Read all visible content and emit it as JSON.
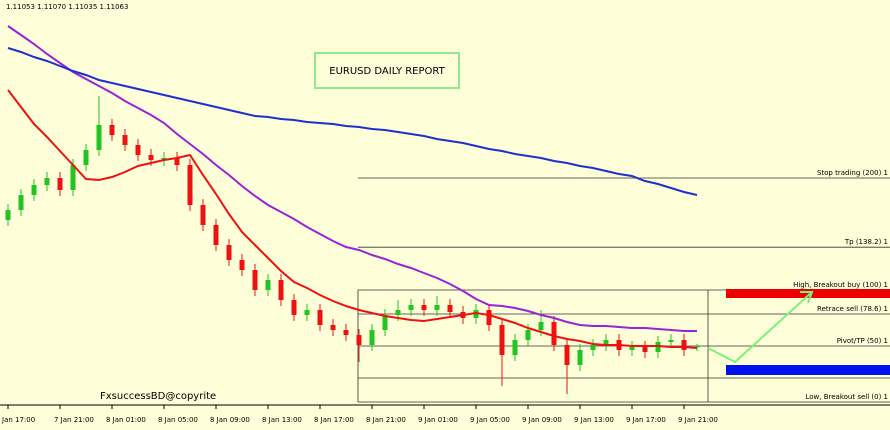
{
  "chart_data": {
    "type": "candlestick",
    "header": "1.11053 1.11070 1.11035 1.11063",
    "title": "EURUSD DAILY REPORT",
    "watermark": "FxsuccessBD@copyrite",
    "ylim": [
      1.10765,
      1.1279
    ],
    "categories": [
      "Jan 17:00",
      null,
      null,
      null,
      "7 Jan 21:00",
      null,
      null,
      null,
      "8 Jan 01:00",
      null,
      null,
      null,
      "8 Jan 05:00",
      null,
      null,
      null,
      "8 Jan 09:00",
      null,
      null,
      null,
      "8 Jan 13:00",
      null,
      null,
      null,
      "8 Jan 17:00",
      null,
      null,
      null,
      "8 Jan 21:00",
      null,
      null,
      null,
      "9 Jan 01:00",
      null,
      null,
      null,
      "9 Jan 05:00",
      null,
      null,
      null,
      "9 Jan 09:00",
      null,
      null,
      null,
      "9 Jan 13:00",
      null,
      null,
      null,
      "9 Jan 17:00",
      null,
      null,
      null,
      "9 Jan 21:00",
      null
    ],
    "open": [
      1.1169,
      1.1174,
      1.11815,
      1.11865,
      1.119,
      1.1184,
      1.11965,
      1.1204,
      1.12165,
      1.12115,
      1.12065,
      1.12015,
      1.1199,
      1.12,
      1.11965,
      1.11765,
      1.11665,
      1.11565,
      1.1149,
      1.1144,
      1.1134,
      1.1139,
      1.1129,
      1.11215,
      1.1124,
      1.11165,
      1.1114,
      1.11115,
      1.11065,
      1.1114,
      1.11215,
      1.1124,
      1.11265,
      1.1124,
      1.11265,
      1.1123,
      1.112,
      1.1124,
      1.11165,
      1.11015,
      1.1109,
      1.1114,
      1.1118,
      1.11065,
      1.10965,
      1.1104,
      1.11065,
      1.1109,
      1.1104,
      1.11055,
      1.1103,
      1.1108,
      1.1109,
      1.11053
    ],
    "high": [
      1.1177,
      1.11845,
      1.11895,
      1.1193,
      1.1193,
      1.11995,
      1.1207,
      1.1231,
      1.12195,
      1.12145,
      1.12095,
      1.12045,
      1.1203,
      1.1203,
      1.11995,
      1.11795,
      1.11695,
      1.11595,
      1.1152,
      1.1147,
      1.1142,
      1.1142,
      1.1132,
      1.1127,
      1.1127,
      1.11195,
      1.1117,
      1.11145,
      1.1117,
      1.11245,
      1.1129,
      1.11295,
      1.11295,
      1.1131,
      1.11295,
      1.1126,
      1.1127,
      1.1127,
      1.11195,
      1.1112,
      1.1117,
      1.1124,
      1.1121,
      1.11095,
      1.1107,
      1.11095,
      1.1112,
      1.1112,
      1.11085,
      1.11085,
      1.1111,
      1.1112,
      1.1112,
      1.1107
    ],
    "low": [
      1.1166,
      1.1171,
      1.11785,
      1.11835,
      1.1181,
      1.1181,
      1.11935,
      1.1201,
      1.12085,
      1.12035,
      1.11985,
      1.1196,
      1.1196,
      1.11935,
      1.11735,
      1.11635,
      1.11535,
      1.1146,
      1.1141,
      1.1131,
      1.1131,
      1.1126,
      1.11185,
      1.11185,
      1.11135,
      1.1111,
      1.11085,
      1.1098,
      1.11035,
      1.1111,
      1.11185,
      1.1121,
      1.1121,
      1.1121,
      1.112,
      1.1117,
      1.1117,
      1.11135,
      1.1086,
      1.10985,
      1.1106,
      1.1111,
      1.11035,
      1.1082,
      1.10935,
      1.1101,
      1.11035,
      1.1101,
      1.1101,
      1.11,
      1.11,
      1.1105,
      1.1101,
      1.11035
    ],
    "close": [
      1.1174,
      1.11815,
      1.11865,
      1.119,
      1.1184,
      1.11965,
      1.1204,
      1.12165,
      1.12115,
      1.12065,
      1.12015,
      1.1199,
      1.12,
      1.11965,
      1.11765,
      1.11665,
      1.11565,
      1.1149,
      1.1144,
      1.1134,
      1.1139,
      1.1129,
      1.11215,
      1.1124,
      1.11165,
      1.1114,
      1.11115,
      1.11065,
      1.1114,
      1.11215,
      1.1124,
      1.11265,
      1.1124,
      1.11265,
      1.1123,
      1.112,
      1.1124,
      1.11165,
      1.11015,
      1.1109,
      1.1114,
      1.1118,
      1.11065,
      1.10965,
      1.1104,
      1.11065,
      1.1109,
      1.1104,
      1.11055,
      1.1103,
      1.1108,
      1.1109,
      1.1104,
      1.11063
    ],
    "up_color": "#22c422",
    "down_color": "#ee1111",
    "series": [
      {
        "color": "#ee1111",
        "values": [
          1.1234,
          1.12255,
          1.1217,
          1.12105,
          1.12035,
          1.11965,
          1.11895,
          1.1189,
          1.11905,
          1.1193,
          1.1196,
          1.11975,
          1.1199,
          1.12,
          1.12015,
          1.11915,
          1.1182,
          1.1172,
          1.1163,
          1.11565,
          1.115,
          1.11435,
          1.1138,
          1.1135,
          1.11315,
          1.11285,
          1.1126,
          1.1124,
          1.11225,
          1.1121,
          1.112,
          1.1119,
          1.11185,
          1.11195,
          1.11205,
          1.11215,
          1.11225,
          1.11215,
          1.11195,
          1.11175,
          1.1115,
          1.1113,
          1.1111,
          1.11095,
          1.11085,
          1.1107,
          1.11065,
          1.11065,
          1.1106,
          1.1106,
          1.1106,
          1.11055,
          1.11055,
          1.1105
        ]
      },
      {
        "color": "#9a22d8",
        "values": [
          1.1266,
          1.12615,
          1.1257,
          1.1252,
          1.12475,
          1.1243,
          1.12395,
          1.1236,
          1.12325,
          1.12285,
          1.1225,
          1.12215,
          1.12175,
          1.1212,
          1.1207,
          1.1202,
          1.11965,
          1.11915,
          1.1186,
          1.1181,
          1.11765,
          1.1173,
          1.11695,
          1.11655,
          1.1162,
          1.11585,
          1.11555,
          1.1154,
          1.11515,
          1.11495,
          1.1147,
          1.1145,
          1.11425,
          1.114,
          1.1137,
          1.11335,
          1.11295,
          1.11265,
          1.1126,
          1.1125,
          1.11235,
          1.11215,
          1.112,
          1.1118,
          1.11165,
          1.1116,
          1.1116,
          1.11155,
          1.1115,
          1.1115,
          1.11145,
          1.1114,
          1.11135,
          1.11135
        ]
      },
      {
        "color": "#1f2fd0",
        "values": [
          1.1255,
          1.1253,
          1.12505,
          1.12485,
          1.1246,
          1.12435,
          1.12415,
          1.1239,
          1.12375,
          1.1236,
          1.12345,
          1.1233,
          1.12315,
          1.123,
          1.12285,
          1.1227,
          1.12255,
          1.1224,
          1.12225,
          1.1221,
          1.12205,
          1.12195,
          1.1219,
          1.1218,
          1.12175,
          1.1217,
          1.1216,
          1.12155,
          1.12145,
          1.1214,
          1.1213,
          1.1212,
          1.1211,
          1.12095,
          1.12085,
          1.12075,
          1.1206,
          1.12045,
          1.12035,
          1.1202,
          1.1201,
          1.12,
          1.11985,
          1.11975,
          1.1196,
          1.1195,
          1.11935,
          1.1192,
          1.1191,
          1.11885,
          1.1187,
          1.1185,
          1.1183,
          1.11815
        ]
      }
    ],
    "levels": [
      {
        "label": "Stop trading (200)  1",
        "value": 1.119
      },
      {
        "label": "Tp (138.2)  1",
        "value": 1.11554
      },
      {
        "label": "High, Breakout buy (100)  1",
        "value": 1.1134
      },
      {
        "label": "Retrace sell (78.6)  1",
        "value": 1.1122
      },
      {
        "label": "Pivot/TP (50)  1",
        "value": 1.1106
      },
      {
        "value": 1.109
      },
      {
        "label": "Low, Breakout sell (0)  1",
        "value": 1.1078
      }
    ]
  }
}
